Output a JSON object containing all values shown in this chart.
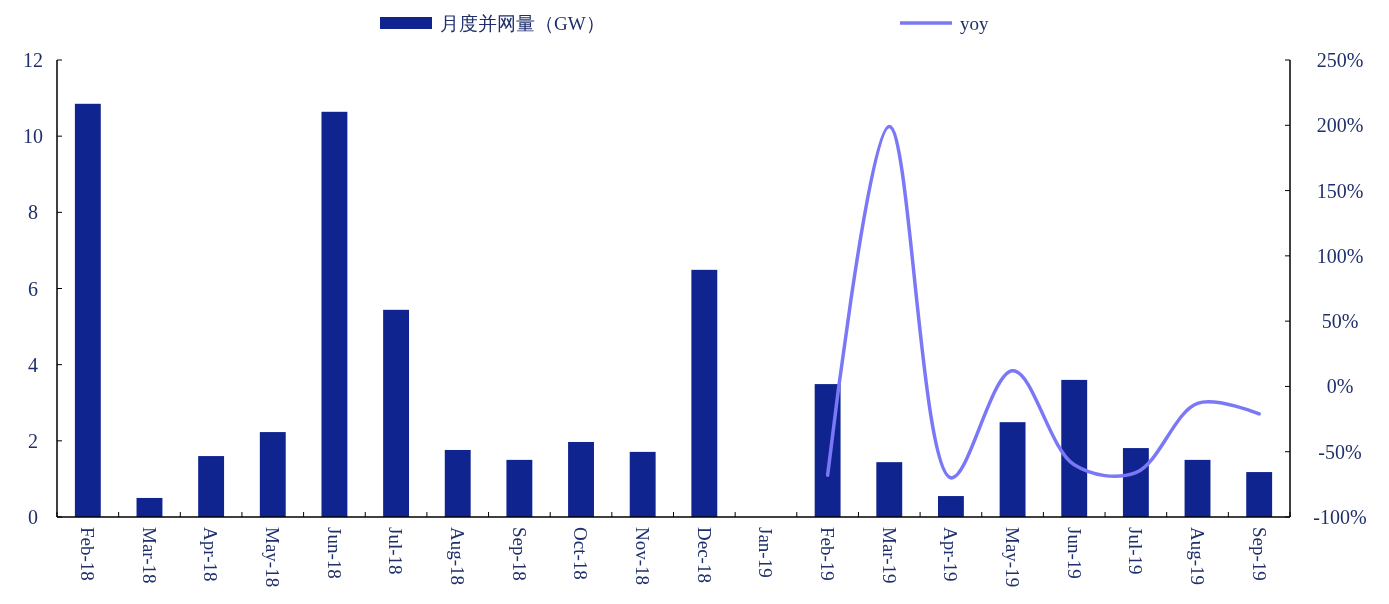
{
  "chart_data": {
    "type": "bar",
    "categories": [
      "Feb-18",
      "Mar-18",
      "Apr-18",
      "May-18",
      "Jun-18",
      "Jul-18",
      "Aug-18",
      "Sep-18",
      "Oct-18",
      "Nov-18",
      "Dec-18",
      "Jan-19",
      "Feb-19",
      "Mar-19",
      "Apr-19",
      "May-19",
      "Jun-19",
      "Jul-19",
      "Aug-19",
      "Sep-19"
    ],
    "series": [
      {
        "name": "月度并网量（GW）",
        "color": "#10248f",
        "values": [
          10.85,
          0.5,
          1.6,
          2.23,
          10.64,
          5.44,
          1.76,
          1.5,
          1.97,
          1.71,
          6.49,
          null,
          3.49,
          1.44,
          0.55,
          2.49,
          3.6,
          1.81,
          1.5,
          1.18
        ]
      },
      {
        "name": "yoy",
        "type": "line",
        "axis": "y2",
        "color": "#7b78f7",
        "values": [
          null,
          null,
          null,
          null,
          null,
          null,
          null,
          null,
          null,
          null,
          null,
          null,
          -68,
          199,
          -70,
          12,
          -60,
          -66,
          -13,
          -21
        ]
      }
    ],
    "ylim": [
      0,
      12
    ],
    "yticks": [
      0,
      2,
      4,
      6,
      8,
      10,
      12
    ],
    "y2lim": [
      -100,
      250
    ],
    "y2ticks": [
      {
        "value": -100,
        "label": "-100%"
      },
      {
        "value": -50,
        "label": "-50%"
      },
      {
        "value": 0,
        "label": "0%"
      },
      {
        "value": 50,
        "label": "50%"
      },
      {
        "value": 100,
        "label": "100%"
      },
      {
        "value": 150,
        "label": "150%"
      },
      {
        "value": 200,
        "label": "200%"
      },
      {
        "value": 250,
        "label": "250%"
      }
    ],
    "legend": "top",
    "grid": false
  }
}
